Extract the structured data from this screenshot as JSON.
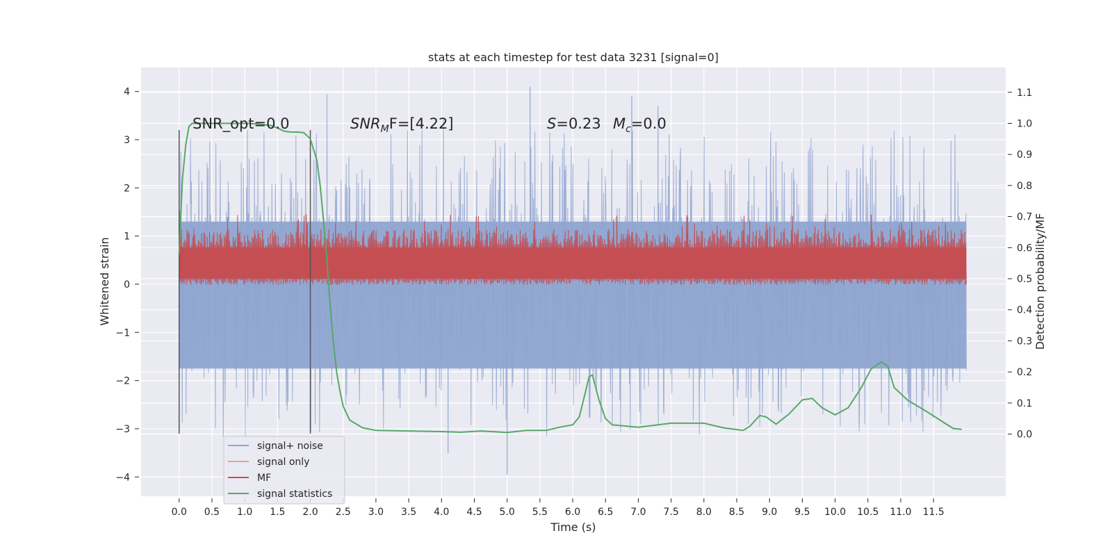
{
  "chart_data": {
    "type": "line",
    "title": "stats at each timestep for test data 3231 [signal=0]",
    "xlabel": "Time (s)",
    "ylabel_left": "Whitened strain",
    "ylabel_right": "Detection probability/MF",
    "xlim": [
      -0.58,
      12.6
    ],
    "ylim_left": [
      -4.4,
      4.5
    ],
    "ylim_right": [
      -0.2,
      1.18
    ],
    "grid": true,
    "x_ticks": [
      "0.0",
      "0.5",
      "1.0",
      "1.5",
      "2.0",
      "2.5",
      "3.0",
      "3.5",
      "4.0",
      "4.5",
      "5.0",
      "5.5",
      "6.0",
      "6.5",
      "7.0",
      "7.5",
      "8.0",
      "8.5",
      "9.0",
      "9.5",
      "10.0",
      "10.5",
      "11.0",
      "11.5"
    ],
    "y_ticks_left": [
      "4",
      "3",
      "2",
      "1",
      "0",
      "−1",
      "−2",
      "−3",
      "−4"
    ],
    "y_ticks_right": [
      "1.1",
      "1.0",
      "0.9",
      "0.8",
      "0.7",
      "0.6",
      "0.5",
      "0.4",
      "0.3",
      "0.2",
      "0.1",
      "0.0"
    ],
    "annotations": {
      "snr_opt": "SNR_opt=0.0",
      "snr_mf_label": "SNR",
      "snr_mf_sub": "M",
      "snr_mf_value": "F=[4.22]",
      "s_label": "S",
      "s_value": "=0.23",
      "mc_label": "M",
      "mc_sub": "c",
      "mc_value": "=0.0"
    },
    "vlines_x": [
      0.0,
      2.0
    ],
    "legend_position": "lower-left",
    "series": [
      {
        "name": "signal+ noise",
        "color": "#8fa5d0",
        "kind": "noise",
        "x_range": [
          0.0,
          12.0
        ],
        "typical_amp": 1.3,
        "peaks_y": [
          4.1,
          3.9,
          3.7,
          -3.5,
          -3.95
        ]
      },
      {
        "name": "signal only",
        "color": "#e8a383",
        "kind": "flat",
        "values": []
      },
      {
        "name": "MF",
        "color": "#c44e52",
        "kind": "band",
        "x_range": [
          0.0,
          12.0
        ],
        "y_range": [
          0.5,
          0.6
        ]
      },
      {
        "name": "signal statistics",
        "color": "#55a868",
        "x": [
          0.0,
          0.05,
          0.1,
          0.15,
          0.2,
          0.3,
          0.5,
          0.8,
          1.0,
          1.2,
          1.4,
          1.5,
          1.6,
          1.7,
          1.8,
          1.9,
          2.0,
          2.1,
          2.15,
          2.2,
          2.25,
          2.3,
          2.35,
          2.4,
          2.45,
          2.5,
          2.6,
          2.8,
          3.0,
          3.5,
          4.0,
          4.3,
          4.6,
          5.0,
          5.3,
          5.6,
          5.8,
          6.0,
          6.1,
          6.2,
          6.25,
          6.3,
          6.4,
          6.5,
          6.6,
          7.0,
          7.5,
          8.0,
          8.3,
          8.6,
          8.7,
          8.85,
          8.95,
          9.1,
          9.3,
          9.5,
          9.65,
          9.8,
          10.0,
          10.2,
          10.4,
          10.55,
          10.7,
          10.8,
          10.9,
          11.1,
          11.4,
          11.6,
          11.8,
          11.93
        ],
        "y": [
          0.58,
          0.82,
          0.93,
          0.99,
          1.0,
          1.0,
          1.0,
          1.0,
          1.0,
          0.998,
          0.993,
          0.985,
          0.975,
          0.972,
          0.972,
          0.97,
          0.95,
          0.88,
          0.8,
          0.69,
          0.57,
          0.42,
          0.3,
          0.2,
          0.14,
          0.09,
          0.045,
          0.02,
          0.012,
          0.01,
          0.008,
          0.006,
          0.01,
          0.005,
          0.012,
          0.012,
          0.022,
          0.03,
          0.055,
          0.14,
          0.185,
          0.19,
          0.11,
          0.05,
          0.03,
          0.022,
          0.035,
          0.035,
          0.02,
          0.012,
          0.025,
          0.06,
          0.055,
          0.032,
          0.065,
          0.11,
          0.115,
          0.085,
          0.062,
          0.085,
          0.15,
          0.21,
          0.232,
          0.22,
          0.15,
          0.11,
          0.072,
          0.045,
          0.018,
          0.015
        ]
      }
    ]
  }
}
